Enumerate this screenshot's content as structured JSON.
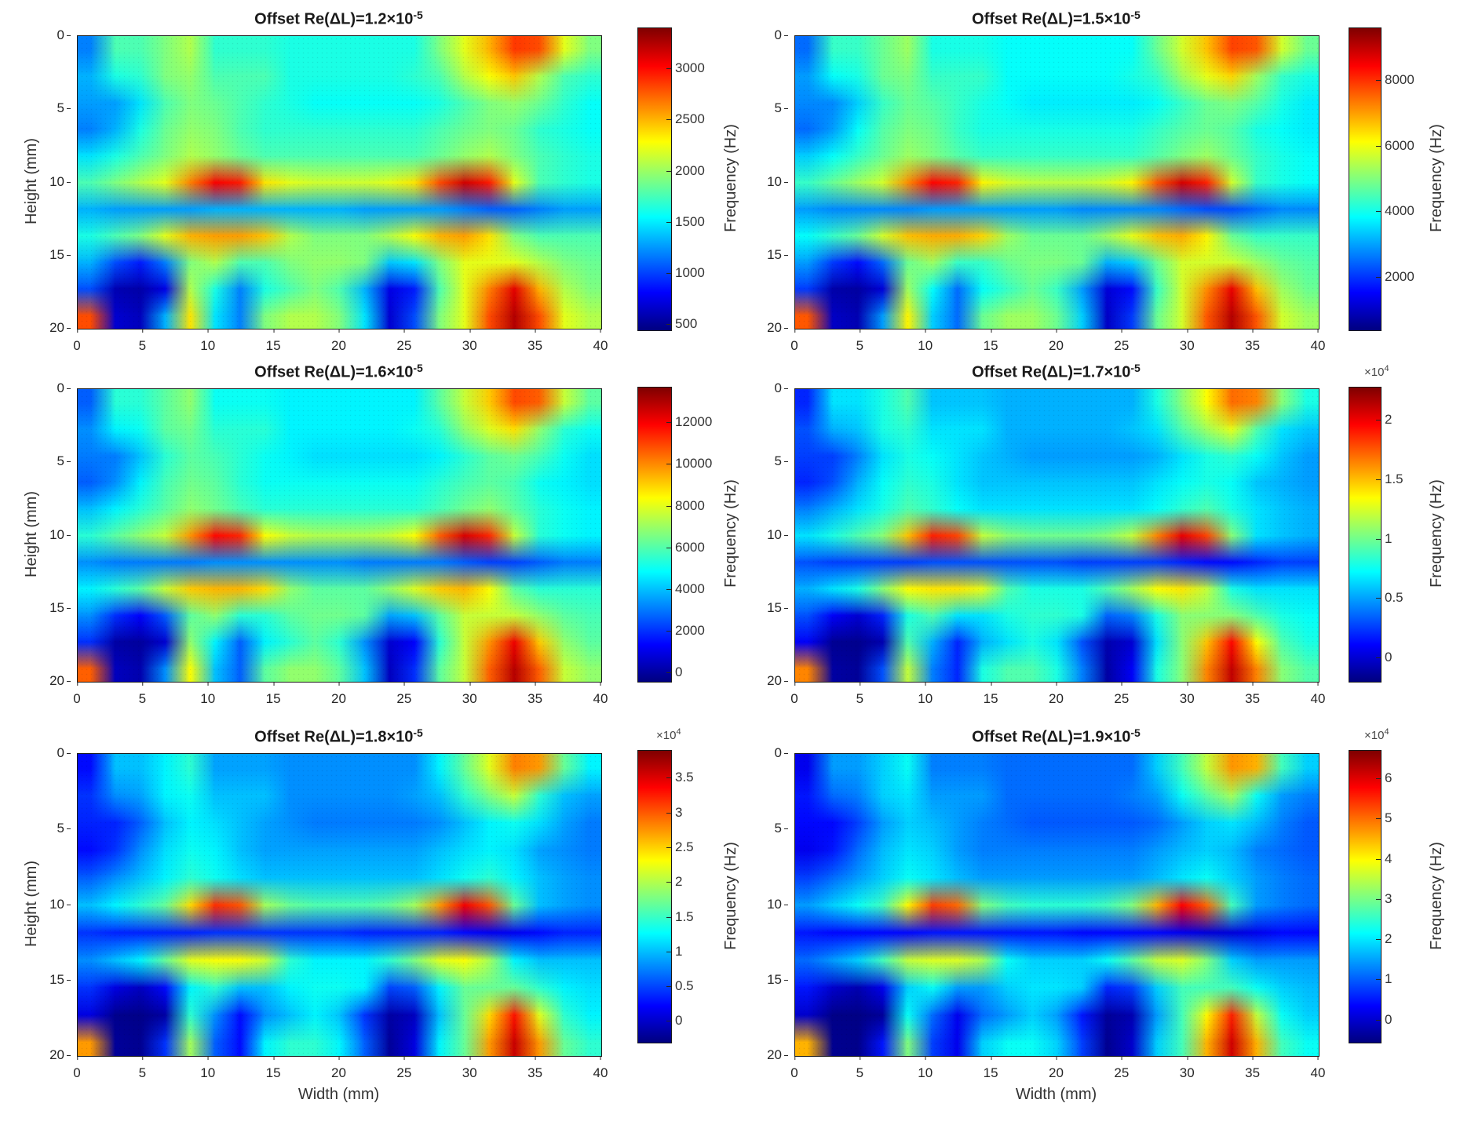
{
  "figure": {
    "background": "#ffffff",
    "text_color": "#262626"
  },
  "chart_data": {
    "type": "heatmap",
    "grid": "3 rows x 2 columns of subplots",
    "colormap": "jet",
    "x_axis": {
      "label": "Width (mm)",
      "range": [
        0,
        40
      ],
      "ticks": [
        0,
        5,
        10,
        15,
        20,
        25,
        30,
        35,
        40
      ]
    },
    "y_axis": {
      "label": "Height (mm)",
      "range": [
        0,
        20
      ],
      "ticks": [
        0,
        5,
        10,
        15,
        20
      ],
      "direction": "reversed, 0 at top"
    },
    "colorbar_label": "Frequency (Hz)",
    "panels": [
      {
        "title_base": "Offset Re(ΔL)=1.2×10",
        "title_exp": "-5",
        "heat_gamma": 1.0,
        "colorbar": {
          "vmin": 450,
          "vmax": 3400,
          "exp_base": null,
          "exp_sup": null,
          "ticks": [
            {
              "value": 3000,
              "label": "3000"
            },
            {
              "value": 2500,
              "label": "2500"
            },
            {
              "value": 2000,
              "label": "2000"
            },
            {
              "value": 1500,
              "label": "1500"
            },
            {
              "value": 1000,
              "label": "1000"
            },
            {
              "value": 500,
              "label": "500"
            }
          ]
        }
      },
      {
        "title_base": "Offset Re(ΔL)=1.5×10",
        "title_exp": "-5",
        "heat_gamma": 1.06,
        "colorbar": {
          "vmin": 400,
          "vmax": 9600,
          "exp_base": null,
          "exp_sup": null,
          "ticks": [
            {
              "value": 8000,
              "label": "8000"
            },
            {
              "value": 6000,
              "label": "6000"
            },
            {
              "value": 4000,
              "label": "4000"
            },
            {
              "value": 2000,
              "label": "2000"
            }
          ]
        }
      },
      {
        "title_base": "Offset Re(ΔL)=1.6×10",
        "title_exp": "-5",
        "heat_gamma": 1.1,
        "colorbar": {
          "vmin": -400,
          "vmax": 13700,
          "exp_base": null,
          "exp_sup": null,
          "ticks": [
            {
              "value": 12000,
              "label": "12000"
            },
            {
              "value": 10000,
              "label": "10000"
            },
            {
              "value": 8000,
              "label": "8000"
            },
            {
              "value": 6000,
              "label": "6000"
            },
            {
              "value": 4000,
              "label": "4000"
            },
            {
              "value": 2000,
              "label": "2000"
            },
            {
              "value": 0,
              "label": "0"
            }
          ]
        }
      },
      {
        "title_base": "Offset Re(ΔL)=1.7×10",
        "title_exp": "-5",
        "heat_gamma": 1.32,
        "colorbar": {
          "vmin": -2000,
          "vmax": 22800,
          "exp_base": "×10",
          "exp_sup": "4",
          "ticks": [
            {
              "value": 20000,
              "label": "2"
            },
            {
              "value": 15000,
              "label": "1.5"
            },
            {
              "value": 10000,
              "label": "1"
            },
            {
              "value": 5000,
              "label": "0.5"
            },
            {
              "value": 0,
              "label": "0"
            }
          ]
        }
      },
      {
        "title_base": "Offset Re(ΔL)=1.8×10",
        "title_exp": "-5",
        "heat_gamma": 1.45,
        "colorbar": {
          "vmin": -3000,
          "vmax": 39000,
          "exp_base": "×10",
          "exp_sup": "4",
          "ticks": [
            {
              "value": 35000,
              "label": "3.5"
            },
            {
              "value": 30000,
              "label": "3"
            },
            {
              "value": 25000,
              "label": "2.5"
            },
            {
              "value": 20000,
              "label": "2"
            },
            {
              "value": 15000,
              "label": "1.5"
            },
            {
              "value": 10000,
              "label": "1"
            },
            {
              "value": 5000,
              "label": "0.5"
            },
            {
              "value": 0,
              "label": "0"
            }
          ]
        }
      },
      {
        "title_base": "Offset Re(ΔL)=1.9×10",
        "title_exp": "-5",
        "heat_gamma": 1.6,
        "colorbar": {
          "vmin": -5500,
          "vmax": 67000,
          "exp_base": "×10",
          "exp_sup": "4",
          "ticks": [
            {
              "value": 60000,
              "label": "6"
            },
            {
              "value": 50000,
              "label": "5"
            },
            {
              "value": 40000,
              "label": "4"
            },
            {
              "value": 30000,
              "label": "3"
            },
            {
              "value": 20000,
              "label": "2"
            },
            {
              "value": 10000,
              "label": "1"
            },
            {
              "value": 0,
              "label": "0"
            }
          ]
        }
      }
    ],
    "base_pattern": {
      "description": "Normalized 0-1 spatial field shared by all panels (estimated from pixels); frequency_hz ≈ colorbar.vmin + (colorbar.vmax − colorbar.vmin) × value^heat_gamma",
      "x_mm": [
        0,
        2,
        4,
        6,
        8,
        10,
        12,
        14,
        16,
        18,
        20,
        22,
        24,
        26,
        28,
        30,
        32,
        34,
        36,
        38,
        40
      ],
      "y_mm": [
        0,
        2,
        4,
        6,
        8,
        10,
        12,
        14,
        16,
        18,
        20
      ],
      "values": [
        [
          0.25,
          0.45,
          0.45,
          0.5,
          0.55,
          0.42,
          0.42,
          0.42,
          0.4,
          0.4,
          0.4,
          0.4,
          0.4,
          0.4,
          0.5,
          0.6,
          0.7,
          0.82,
          0.8,
          0.6,
          0.5
        ],
        [
          0.3,
          0.4,
          0.42,
          0.5,
          0.52,
          0.45,
          0.45,
          0.45,
          0.4,
          0.4,
          0.4,
          0.4,
          0.4,
          0.42,
          0.45,
          0.55,
          0.62,
          0.68,
          0.55,
          0.45,
          0.42
        ],
        [
          0.28,
          0.28,
          0.35,
          0.45,
          0.5,
          0.48,
          0.45,
          0.42,
          0.4,
          0.38,
          0.38,
          0.38,
          0.38,
          0.38,
          0.4,
          0.45,
          0.5,
          0.52,
          0.48,
          0.42,
          0.38
        ],
        [
          0.25,
          0.3,
          0.4,
          0.48,
          0.52,
          0.5,
          0.45,
          0.42,
          0.42,
          0.42,
          0.42,
          0.42,
          0.42,
          0.42,
          0.45,
          0.48,
          0.5,
          0.48,
          0.42,
          0.4,
          0.38
        ],
        [
          0.35,
          0.4,
          0.45,
          0.5,
          0.55,
          0.52,
          0.48,
          0.45,
          0.45,
          0.45,
          0.45,
          0.45,
          0.45,
          0.45,
          0.48,
          0.52,
          0.55,
          0.5,
          0.45,
          0.42,
          0.4
        ],
        [
          0.45,
          0.5,
          0.55,
          0.6,
          0.75,
          0.88,
          0.85,
          0.65,
          0.6,
          0.58,
          0.58,
          0.58,
          0.6,
          0.65,
          0.8,
          0.92,
          0.85,
          0.6,
          0.45,
          0.42,
          0.4
        ],
        [
          0.3,
          0.28,
          0.28,
          0.28,
          0.28,
          0.3,
          0.3,
          0.3,
          0.3,
          0.3,
          0.3,
          0.28,
          0.28,
          0.28,
          0.28,
          0.25,
          0.22,
          0.22,
          0.25,
          0.28,
          0.28
        ],
        [
          0.4,
          0.45,
          0.5,
          0.6,
          0.7,
          0.72,
          0.72,
          0.68,
          0.55,
          0.5,
          0.5,
          0.5,
          0.55,
          0.62,
          0.7,
          0.72,
          0.65,
          0.5,
          0.45,
          0.45,
          0.45
        ],
        [
          0.3,
          0.2,
          0.15,
          0.25,
          0.5,
          0.55,
          0.45,
          0.45,
          0.5,
          0.52,
          0.52,
          0.5,
          0.32,
          0.35,
          0.5,
          0.6,
          0.6,
          0.6,
          0.55,
          0.5,
          0.48
        ],
        [
          0.2,
          0.05,
          0.04,
          0.1,
          0.55,
          0.4,
          0.25,
          0.4,
          0.45,
          0.5,
          0.45,
          0.3,
          0.1,
          0.15,
          0.45,
          0.6,
          0.75,
          0.9,
          0.7,
          0.55,
          0.5
        ],
        [
          0.8,
          0.08,
          0.06,
          0.3,
          0.65,
          0.35,
          0.25,
          0.5,
          0.55,
          0.55,
          0.5,
          0.35,
          0.08,
          0.2,
          0.5,
          0.6,
          0.8,
          0.95,
          0.8,
          0.6,
          0.55
        ]
      ]
    }
  }
}
